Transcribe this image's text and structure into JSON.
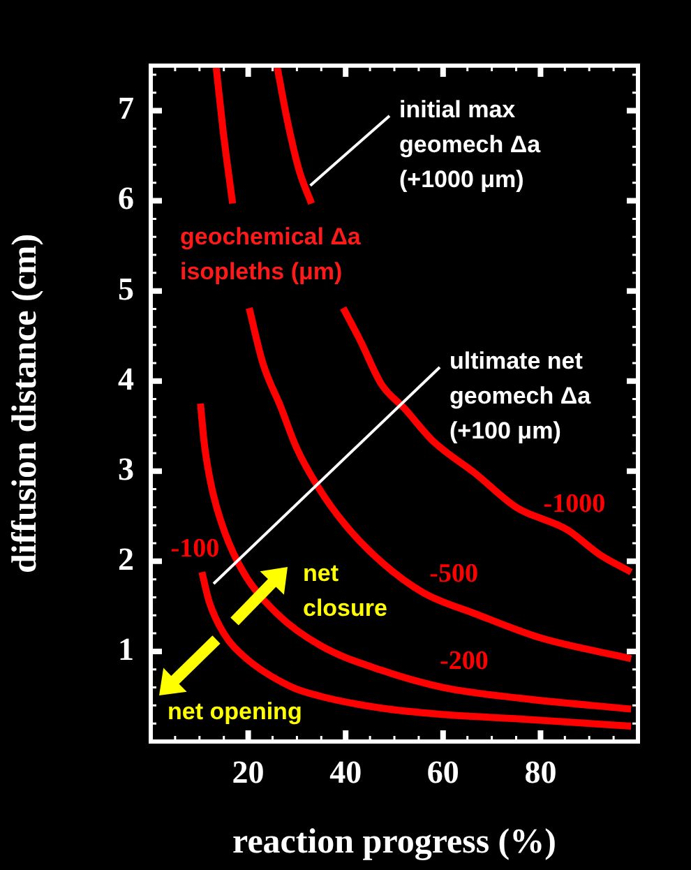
{
  "chart_data": {
    "type": "line",
    "xlabel": "reaction progress (%)",
    "ylabel": "diffusion distance (cm)",
    "xlim": [
      0,
      100
    ],
    "ylim": [
      0,
      7.5
    ],
    "xticks": [
      {
        "value": 5,
        "label": null
      },
      {
        "value": 10,
        "label": null
      },
      {
        "value": 15,
        "label": null
      },
      20,
      {
        "value": 25,
        "label": null
      },
      {
        "value": 30,
        "label": null
      },
      {
        "value": 35,
        "label": null
      },
      40,
      {
        "value": 45,
        "label": null
      },
      {
        "value": 50,
        "label": null
      },
      {
        "value": 55,
        "label": null
      },
      60,
      {
        "value": 65,
        "label": null
      },
      {
        "value": 70,
        "label": null
      },
      {
        "value": 75,
        "label": null
      },
      80,
      {
        "value": 85,
        "label": null
      },
      {
        "value": 90,
        "label": null
      },
      {
        "value": 95,
        "label": null
      }
    ],
    "yticks": [
      {
        "value": 0.2,
        "label": null
      },
      {
        "value": 0.4,
        "label": null
      },
      {
        "value": 0.6,
        "label": null
      },
      {
        "value": 0.8,
        "label": null
      },
      1,
      {
        "value": 1.2,
        "label": null
      },
      {
        "value": 1.4,
        "label": null
      },
      {
        "value": 1.6,
        "label": null
      },
      {
        "value": 1.8,
        "label": null
      },
      2,
      {
        "value": 2.2,
        "label": null
      },
      {
        "value": 2.4,
        "label": null
      },
      {
        "value": 2.6,
        "label": null
      },
      {
        "value": 2.8,
        "label": null
      },
      3,
      {
        "value": 3.2,
        "label": null
      },
      {
        "value": 3.4,
        "label": null
      },
      {
        "value": 3.6,
        "label": null
      },
      {
        "value": 3.8,
        "label": null
      },
      4,
      {
        "value": 4.2,
        "label": null
      },
      {
        "value": 4.4,
        "label": null
      },
      {
        "value": 4.6,
        "label": null
      },
      {
        "value": 4.8,
        "label": null
      },
      5,
      {
        "value": 5.2,
        "label": null
      },
      {
        "value": 5.4,
        "label": null
      },
      {
        "value": 5.6,
        "label": null
      },
      {
        "value": 5.8,
        "label": null
      },
      6,
      {
        "value": 6.2,
        "label": null
      },
      {
        "value": 6.4,
        "label": null
      },
      {
        "value": 6.6,
        "label": null
      },
      {
        "value": 6.8,
        "label": null
      },
      7,
      {
        "value": 7.2,
        "label": null
      },
      {
        "value": 7.4,
        "label": null
      }
    ],
    "marker": "none",
    "line_style": "solid",
    "series": [
      {
        "name": "-1000",
        "color": "#ff0000",
        "x": [
          25.9,
          28,
          30.5,
          33,
          36,
          39.5,
          43,
          47.4,
          52,
          58,
          66.5,
          75,
          85.5,
          92,
          98.6
        ],
        "values": [
          7.5,
          6.9,
          6.33,
          5.97,
          null,
          4.81,
          4.45,
          3.96,
          3.7,
          3.33,
          2.98,
          2.6,
          2.35,
          2.08,
          1.88
        ]
      },
      {
        "name": "-500",
        "color": "#ff0000",
        "x": [
          13.4,
          14.8,
          16.8,
          18.5,
          20.2,
          23,
          26.7,
          30,
          34.4,
          40,
          47.4,
          56,
          66.5,
          80,
          98.6
        ],
        "values": [
          7.5,
          6.8,
          5.97,
          null,
          4.81,
          4.2,
          3.71,
          3.25,
          2.82,
          2.4,
          1.99,
          1.65,
          1.42,
          1.15,
          0.92
        ]
      },
      {
        "name": "-200",
        "color": "#ff0000",
        "x": [
          10.2,
          11,
          12.5,
          15,
          19,
          25.9,
          35,
          47.4,
          60,
          75.9,
          98.6
        ],
        "values": [
          3.75,
          3.3,
          2.82,
          2.35,
          1.88,
          1.42,
          1.06,
          0.79,
          0.6,
          0.48,
          0.36
        ]
      },
      {
        "name": "-100",
        "color": "#ff0000",
        "x": [
          10.5,
          12,
          15,
          19,
          28.7,
          35,
          47.4,
          60,
          75.9,
          98.6
        ],
        "values": [
          1.88,
          1.55,
          1.2,
          0.95,
          0.61,
          0.5,
          0.37,
          0.3,
          0.25,
          0.17
        ]
      }
    ],
    "annotations": [
      {
        "text": "initial max\ngeomech Δa\n(+1000 μm)",
        "x": 31.6,
        "y": 6.17
      },
      "geochemical Δa\nisopleths (μm)",
      "ultimate net\ngeomech Δa\n(+100 μm)",
      "net\nclosure",
      "net opening"
    ]
  }
}
